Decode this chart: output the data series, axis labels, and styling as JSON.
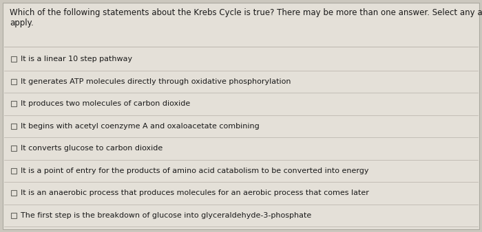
{
  "background_color": "#cbc7be",
  "box_color": "#e4e0d8",
  "border_color": "#aaa89f",
  "line_color": "#b5b0a8",
  "question": "Which of the following statements about the Krebs Cycle is true? There may be more than one answer. Select any and all that\napply.",
  "question_fontsize": 8.5,
  "options": [
    "It is a linear 10 step pathway",
    "It generates ATP molecules directly through oxidative phosphorylation",
    "It produces two molecules of carbon dioxide",
    "It begins with acetyl coenzyme A and oxaloacetate combining",
    "It converts glucose to carbon dioxide",
    "It is a point of entry for the products of amino acid catabolism to be converted into energy",
    "It is an anaerobic process that produces molecules for an aerobic process that comes later",
    "The first step is the breakdown of glucose into glyceraldehyde-3-phosphate"
  ],
  "option_fontsize": 8.0,
  "text_color": "#1a1a1a",
  "checkbox_color": "#666660"
}
